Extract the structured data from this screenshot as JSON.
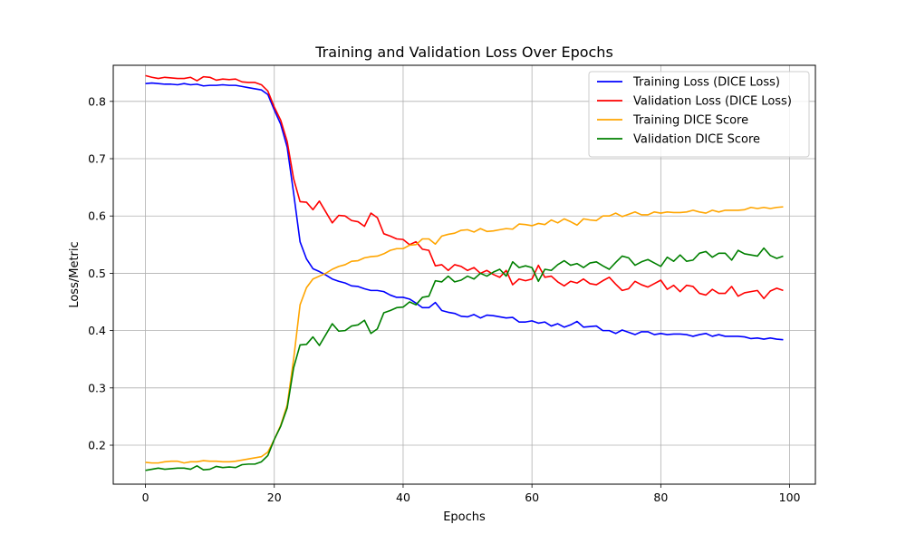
{
  "chart_data": {
    "type": "line",
    "title": "Training and Validation Loss Over Epochs",
    "xlabel": "Epochs",
    "ylabel": "Loss/Metric",
    "xlim": [
      -5,
      104
    ],
    "ylim": [
      0.132,
      0.863
    ],
    "xticks": [
      0,
      20,
      40,
      60,
      80,
      100
    ],
    "yticks": [
      0.2,
      0.3,
      0.4,
      0.5,
      0.6,
      0.7,
      0.8
    ],
    "xtick_labels": [
      "0",
      "20",
      "40",
      "60",
      "80",
      "100"
    ],
    "ytick_labels": [
      "0.2",
      "0.3",
      "0.4",
      "0.5",
      "0.6",
      "0.7",
      "0.8"
    ],
    "grid": true,
    "legend_position": "top-right",
    "x": [
      0,
      1,
      2,
      3,
      4,
      5,
      6,
      7,
      8,
      9,
      10,
      11,
      12,
      13,
      14,
      15,
      16,
      17,
      18,
      19,
      20,
      21,
      22,
      23,
      24,
      25,
      26,
      27,
      28,
      29,
      30,
      31,
      32,
      33,
      34,
      35,
      36,
      37,
      38,
      39,
      40,
      41,
      42,
      43,
      44,
      45,
      46,
      47,
      48,
      49,
      50,
      51,
      52,
      53,
      54,
      55,
      56,
      57,
      58,
      59,
      60,
      61,
      62,
      63,
      64,
      65,
      66,
      67,
      68,
      69,
      70,
      71,
      72,
      73,
      74,
      75,
      76,
      77,
      78,
      79,
      80,
      81,
      82,
      83,
      84,
      85,
      86,
      87,
      88,
      89,
      90,
      91,
      92,
      93,
      94,
      95,
      96,
      97,
      98,
      99
    ],
    "series": [
      {
        "name": "Training Loss (DICE Loss)",
        "color": "#0000ff",
        "values": [
          0.831,
          0.832,
          0.831,
          0.83,
          0.83,
          0.829,
          0.831,
          0.829,
          0.83,
          0.827,
          0.828,
          0.828,
          0.829,
          0.828,
          0.828,
          0.826,
          0.824,
          0.822,
          0.82,
          0.812,
          0.785,
          0.76,
          0.72,
          0.64,
          0.555,
          0.525,
          0.508,
          0.503,
          0.497,
          0.49,
          0.486,
          0.483,
          0.478,
          0.477,
          0.473,
          0.47,
          0.47,
          0.468,
          0.462,
          0.458,
          0.458,
          0.455,
          0.448,
          0.44,
          0.44,
          0.449,
          0.435,
          0.432,
          0.43,
          0.425,
          0.424,
          0.428,
          0.422,
          0.427,
          0.426,
          0.424,
          0.422,
          0.423,
          0.415,
          0.415,
          0.417,
          0.413,
          0.415,
          0.408,
          0.412,
          0.406,
          0.41,
          0.416,
          0.406,
          0.407,
          0.408,
          0.4,
          0.4,
          0.395,
          0.401,
          0.397,
          0.393,
          0.398,
          0.398,
          0.393,
          0.395,
          0.393,
          0.394,
          0.394,
          0.393,
          0.39,
          0.393,
          0.395,
          0.39,
          0.393,
          0.39,
          0.39,
          0.39,
          0.389,
          0.386,
          0.387,
          0.385,
          0.387,
          0.385,
          0.384
        ]
      },
      {
        "name": "Validation Loss (DICE Loss)",
        "color": "#ff0000",
        "values": [
          0.845,
          0.842,
          0.84,
          0.842,
          0.841,
          0.84,
          0.84,
          0.842,
          0.836,
          0.843,
          0.842,
          0.837,
          0.839,
          0.838,
          0.839,
          0.834,
          0.833,
          0.833,
          0.829,
          0.818,
          0.79,
          0.767,
          0.73,
          0.665,
          0.625,
          0.624,
          0.611,
          0.626,
          0.607,
          0.588,
          0.601,
          0.6,
          0.592,
          0.59,
          0.582,
          0.605,
          0.597,
          0.569,
          0.565,
          0.56,
          0.559,
          0.55,
          0.555,
          0.542,
          0.54,
          0.513,
          0.515,
          0.505,
          0.515,
          0.512,
          0.505,
          0.51,
          0.5,
          0.505,
          0.498,
          0.493,
          0.505,
          0.48,
          0.49,
          0.487,
          0.49,
          0.514,
          0.493,
          0.495,
          0.485,
          0.478,
          0.486,
          0.483,
          0.49,
          0.482,
          0.48,
          0.487,
          0.493,
          0.481,
          0.47,
          0.473,
          0.486,
          0.48,
          0.476,
          0.482,
          0.488,
          0.472,
          0.479,
          0.468,
          0.479,
          0.477,
          0.465,
          0.462,
          0.472,
          0.465,
          0.465,
          0.477,
          0.46,
          0.466,
          0.468,
          0.47,
          0.456,
          0.469,
          0.474,
          0.47
        ]
      },
      {
        "name": "Training DICE Score",
        "color": "#ffa500",
        "values": [
          0.17,
          0.169,
          0.169,
          0.171,
          0.172,
          0.172,
          0.169,
          0.171,
          0.171,
          0.173,
          0.172,
          0.172,
          0.171,
          0.171,
          0.172,
          0.174,
          0.176,
          0.178,
          0.18,
          0.188,
          0.21,
          0.235,
          0.27,
          0.35,
          0.445,
          0.475,
          0.49,
          0.495,
          0.5,
          0.507,
          0.512,
          0.515,
          0.521,
          0.522,
          0.527,
          0.529,
          0.53,
          0.534,
          0.54,
          0.543,
          0.543,
          0.549,
          0.55,
          0.56,
          0.56,
          0.551,
          0.565,
          0.568,
          0.57,
          0.575,
          0.576,
          0.572,
          0.578,
          0.573,
          0.574,
          0.576,
          0.578,
          0.577,
          0.586,
          0.585,
          0.583,
          0.587,
          0.585,
          0.593,
          0.588,
          0.595,
          0.59,
          0.584,
          0.595,
          0.593,
          0.592,
          0.6,
          0.6,
          0.605,
          0.599,
          0.603,
          0.607,
          0.602,
          0.602,
          0.607,
          0.605,
          0.607,
          0.606,
          0.606,
          0.607,
          0.61,
          0.607,
          0.605,
          0.61,
          0.607,
          0.61,
          0.61,
          0.61,
          0.611,
          0.615,
          0.613,
          0.615,
          0.613,
          0.615,
          0.616
        ]
      },
      {
        "name": "Validation DICE Score",
        "color": "#008000",
        "values": [
          0.156,
          0.158,
          0.16,
          0.158,
          0.159,
          0.16,
          0.16,
          0.158,
          0.164,
          0.157,
          0.158,
          0.163,
          0.161,
          0.162,
          0.161,
          0.166,
          0.167,
          0.167,
          0.171,
          0.182,
          0.21,
          0.233,
          0.265,
          0.335,
          0.375,
          0.376,
          0.389,
          0.374,
          0.393,
          0.412,
          0.399,
          0.4,
          0.408,
          0.41,
          0.418,
          0.395,
          0.403,
          0.431,
          0.435,
          0.44,
          0.441,
          0.45,
          0.445,
          0.458,
          0.46,
          0.487,
          0.485,
          0.495,
          0.485,
          0.488,
          0.495,
          0.49,
          0.5,
          0.495,
          0.502,
          0.507,
          0.495,
          0.52,
          0.51,
          0.513,
          0.51,
          0.486,
          0.507,
          0.505,
          0.515,
          0.522,
          0.514,
          0.517,
          0.51,
          0.518,
          0.52,
          0.513,
          0.507,
          0.519,
          0.53,
          0.527,
          0.514,
          0.52,
          0.524,
          0.518,
          0.512,
          0.528,
          0.521,
          0.532,
          0.521,
          0.523,
          0.535,
          0.538,
          0.528,
          0.535,
          0.535,
          0.523,
          0.54,
          0.534,
          0.532,
          0.53,
          0.544,
          0.531,
          0.526,
          0.53
        ]
      }
    ]
  }
}
